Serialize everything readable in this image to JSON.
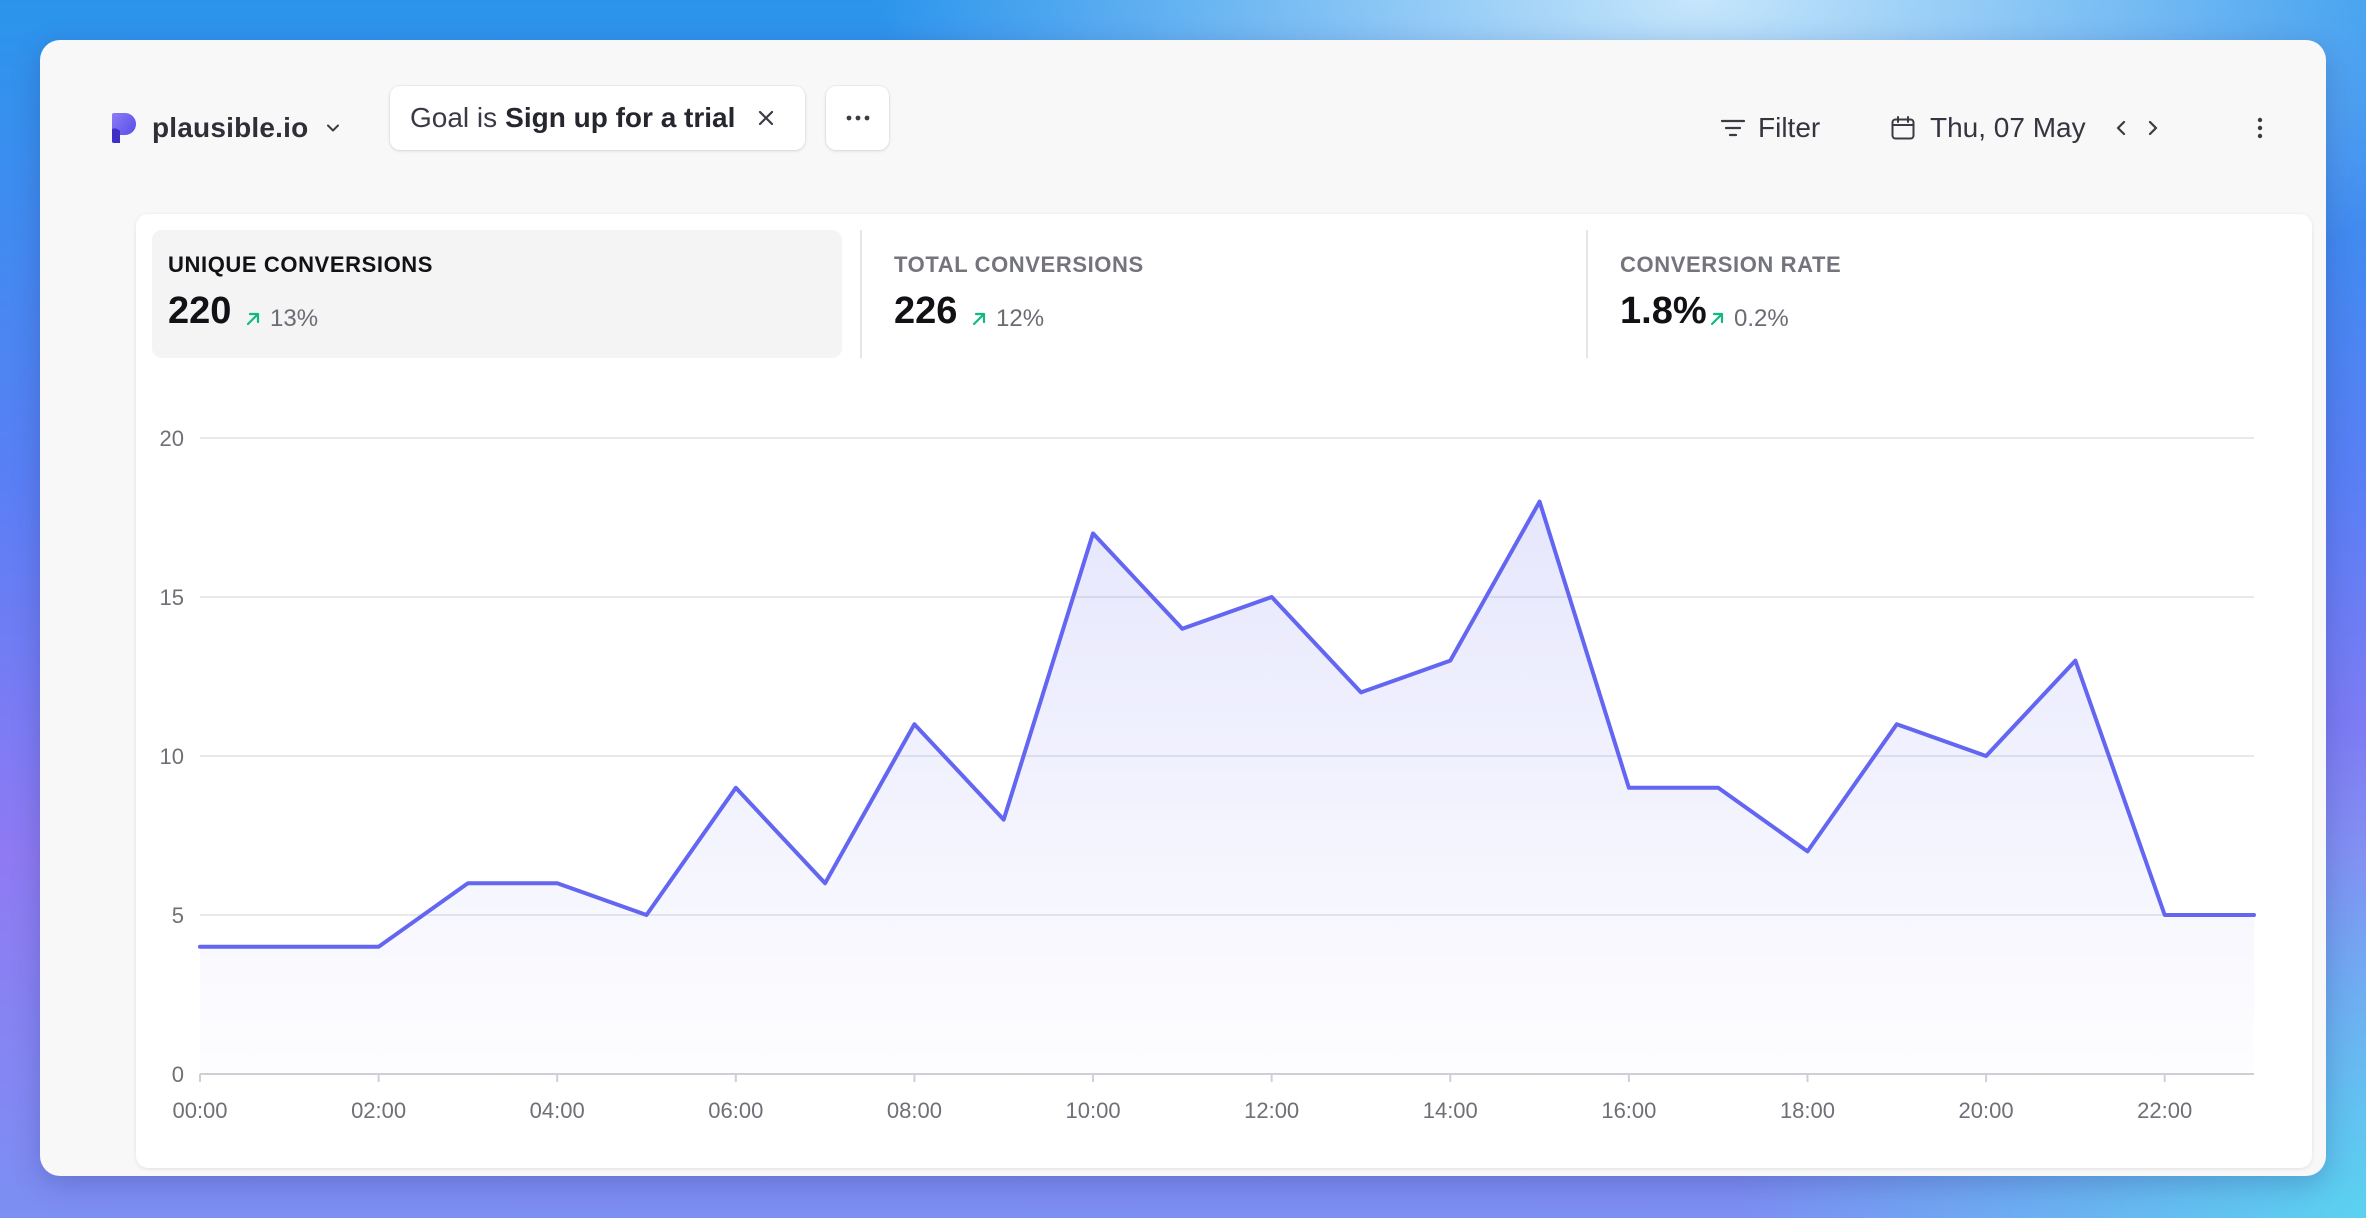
{
  "site": {
    "name": "plausible.io"
  },
  "filter_chip": {
    "prefix": "Goal is",
    "value": "Sign up for a trial"
  },
  "toolbar": {
    "filter_label": "Filter",
    "date_label": "Thu, 07 May"
  },
  "metrics": [
    {
      "label": "UNIQUE CONVERSIONS",
      "value": "220",
      "change": "13%"
    },
    {
      "label": "TOTAL CONVERSIONS",
      "value": "226",
      "change": "12%"
    },
    {
      "label": "CONVERSION RATE",
      "value": "1.8%",
      "change": "0.2%"
    }
  ],
  "colors": {
    "accent": "#6366f1",
    "positive": "#10b981"
  },
  "chart_data": {
    "type": "area",
    "x": [
      "00:00",
      "01:00",
      "02:00",
      "03:00",
      "04:00",
      "05:00",
      "06:00",
      "07:00",
      "08:00",
      "09:00",
      "10:00",
      "11:00",
      "12:00",
      "13:00",
      "14:00",
      "15:00",
      "16:00",
      "17:00",
      "18:00",
      "19:00",
      "20:00",
      "21:00",
      "22:00",
      "23:00"
    ],
    "series": [
      {
        "values": [
          4,
          4,
          4,
          6,
          6,
          5,
          9,
          6,
          11,
          8,
          17,
          14,
          15,
          12,
          13,
          18,
          9,
          9,
          7,
          11,
          10,
          13,
          5,
          5
        ]
      }
    ],
    "x_tick_labels": [
      "00:00",
      "02:00",
      "04:00",
      "06:00",
      "08:00",
      "10:00",
      "12:00",
      "14:00",
      "16:00",
      "18:00",
      "20:00",
      "22:00"
    ],
    "y_ticks": [
      0,
      5,
      10,
      15,
      20
    ],
    "ylim": [
      0,
      20
    ],
    "grid": true,
    "legend": false
  }
}
